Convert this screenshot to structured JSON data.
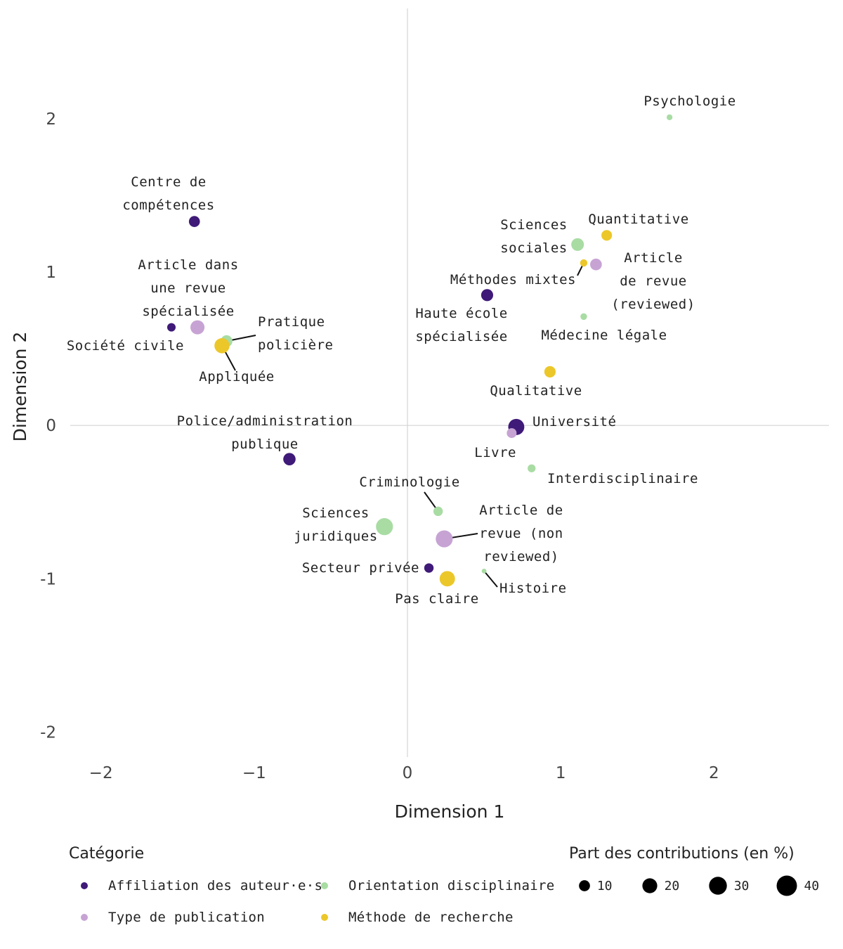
{
  "chart_data": {
    "type": "scatter",
    "xlabel": "Dimension 1",
    "ylabel": "Dimension 2",
    "xlim": [
      -2.2,
      2.75
    ],
    "ylim": [
      -2.2,
      2.72
    ],
    "x_ticks": [
      {
        "value": -2,
        "label": "−2"
      },
      {
        "value": -1,
        "label": "−1"
      },
      {
        "value": 0,
        "label": "0"
      },
      {
        "value": 1,
        "label": "1"
      },
      {
        "value": 2,
        "label": "2"
      }
    ],
    "y_ticks": [
      {
        "value": 2,
        "label": "2"
      },
      {
        "value": 1,
        "label": "1"
      },
      {
        "value": 0,
        "label": "0"
      },
      {
        "value": -1,
        "label": "-1"
      },
      {
        "value": -2,
        "label": "-2"
      }
    ],
    "reference_lines": {
      "x": 0,
      "y": 0
    },
    "categories": [
      {
        "key": "affiliation",
        "name": "Affiliation des auteur·e·s",
        "color": "#3f1a78"
      },
      {
        "key": "type",
        "name": "Type de publication",
        "color": "#c7a3d4"
      },
      {
        "key": "discipline",
        "name": "Orientation disciplinaire",
        "color": "#a8dca3"
      },
      {
        "key": "methode",
        "name": "Méthode de recherche",
        "color": "#ecc72a"
      }
    ],
    "points": [
      {
        "label": "Centre de\ncompétences",
        "cat": "affiliation",
        "x": -1.39,
        "y": 1.33,
        "size": 12
      },
      {
        "label": "Société civile",
        "cat": "affiliation",
        "x": -1.54,
        "y": 0.64,
        "size": 6
      },
      {
        "label": "Police/administration\npublique",
        "cat": "affiliation",
        "x": -0.77,
        "y": -0.22,
        "size": 16
      },
      {
        "label": "Haute école\nspécialisée",
        "cat": "affiliation",
        "x": 0.52,
        "y": 0.85,
        "size": 15
      },
      {
        "label": "Université",
        "cat": "affiliation",
        "x": 0.71,
        "y": -0.01,
        "size": 30
      },
      {
        "label": "Secteur privée",
        "cat": "affiliation",
        "x": 0.14,
        "y": -0.93,
        "size": 8
      },
      {
        "label": "Article dans\nune revue\nspécialisée",
        "cat": "type",
        "x": -1.37,
        "y": 0.64,
        "size": 22
      },
      {
        "label": "Article\nde revue\n(reviewed)",
        "cat": "type",
        "x": 1.23,
        "y": 1.05,
        "size": 14
      },
      {
        "label": "Livre",
        "cat": "type",
        "x": 0.68,
        "y": -0.05,
        "size": 9
      },
      {
        "label": "Article de\nrevue (non\nreviewed)",
        "cat": "type",
        "x": 0.24,
        "y": -0.74,
        "size": 34
      },
      {
        "label": "Pratique\npolicière",
        "cat": "discipline",
        "x": -1.18,
        "y": 0.55,
        "size": 14
      },
      {
        "label": "Sciences\nsociales",
        "cat": "discipline",
        "x": 1.11,
        "y": 1.18,
        "size": 17
      },
      {
        "label": "Psychologie",
        "cat": "discipline",
        "x": 1.71,
        "y": 2.01,
        "size": 2
      },
      {
        "label": "Médecine légale",
        "cat": "discipline",
        "x": 1.15,
        "y": 0.71,
        "size": 3
      },
      {
        "label": "Interdisciplinaire",
        "cat": "discipline",
        "x": 0.81,
        "y": -0.28,
        "size": 5
      },
      {
        "label": "Criminologie",
        "cat": "discipline",
        "x": 0.2,
        "y": -0.56,
        "size": 8
      },
      {
        "label": "Sciences\njuridiques",
        "cat": "discipline",
        "x": -0.15,
        "y": -0.66,
        "size": 34
      },
      {
        "label": "Histoire",
        "cat": "discipline",
        "x": 0.5,
        "y": -0.95,
        "size": 1
      },
      {
        "label": "Appliquée",
        "cat": "methode",
        "x": -1.21,
        "y": 0.52,
        "size": 26
      },
      {
        "label": "Quantitative",
        "cat": "methode",
        "x": 1.3,
        "y": 1.24,
        "size": 11
      },
      {
        "label": "Méthodes mixtes",
        "cat": "methode",
        "x": 1.15,
        "y": 1.06,
        "size": 4
      },
      {
        "label": "Qualitative",
        "cat": "methode",
        "x": 0.93,
        "y": 0.35,
        "size": 13
      },
      {
        "label": "Pas claire",
        "cat": "methode",
        "x": 0.26,
        "y": -1.0,
        "size": 27
      }
    ],
    "legend": {
      "category_title": "Catégorie",
      "size_title": "Part des contributions (en %)",
      "size_steps": [
        10,
        20,
        30,
        40
      ]
    }
  }
}
